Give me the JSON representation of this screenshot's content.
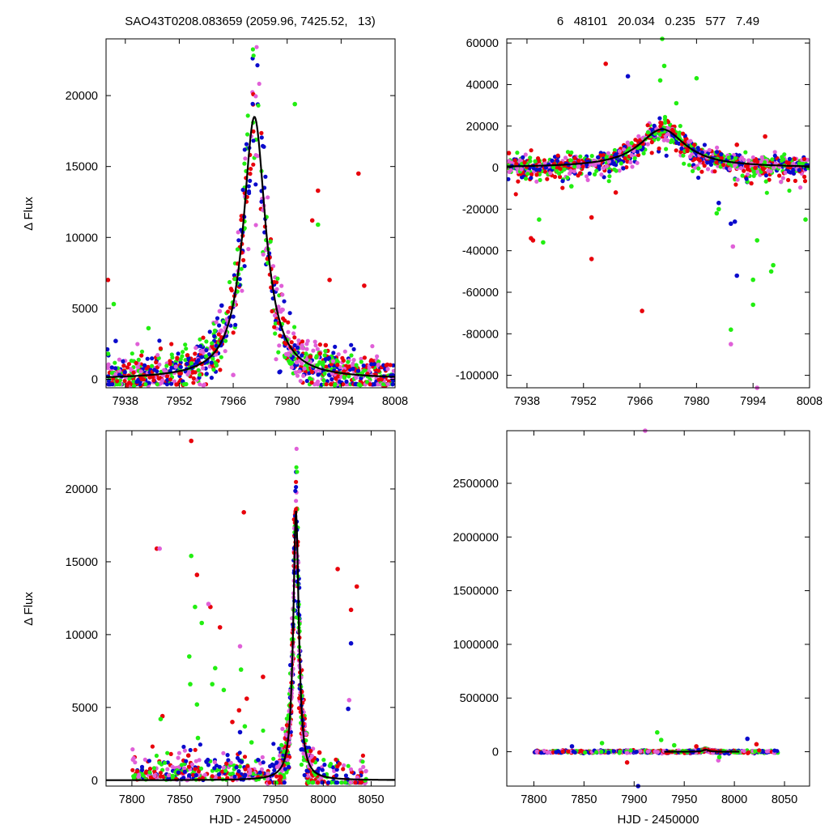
{
  "header": {
    "left_title": "SAO43T0208.083659 (2059.96, 7425.52,   13)",
    "right_title": "6   48101   20.034   0.235   577   7.49"
  },
  "colors": {
    "red": "#e8000b",
    "blue": "#0a0acc",
    "violet": "#e060d8",
    "green": "#22ee11",
    "fit": "#000000"
  },
  "chart_data": [
    {
      "id": "top-left",
      "type": "scatter",
      "title": "",
      "xlabel": "",
      "ylabel": "Δ Flux",
      "xlim": [
        7933,
        8008
      ],
      "ylim": [
        -600,
        24000
      ],
      "xticks": [
        7938,
        7952,
        7966,
        7980,
        7994,
        8008
      ],
      "yticks": [
        0,
        5000,
        10000,
        15000,
        20000
      ],
      "series": [
        {
          "color": "red",
          "outliers": [
            [
              7933.5,
              7000
            ],
            [
              7998.5,
              14500
            ],
            [
              7986.5,
              11200
            ],
            [
              7988,
              13300
            ],
            [
              7991,
              7000
            ],
            [
              8000,
              6600
            ],
            [
              7986,
              1600
            ],
            [
              7990,
              2400
            ]
          ]
        },
        {
          "color": "green",
          "outliers": [
            [
              7935,
              5300
            ],
            [
              7982,
              19400
            ],
            [
              7975,
              8200
            ],
            [
              7988,
              10900
            ],
            [
              7944,
              3600
            ],
            [
              7933.5,
              1800
            ]
          ]
        },
        {
          "color": "violet",
          "outliers": [
            [
              7962.5,
              4800
            ],
            [
              7966,
              300
            ],
            [
              7982.5,
              1200
            ]
          ]
        },
        {
          "color": "blue",
          "outliers": [
            [
              7935.5,
              2700
            ],
            [
              7978,
              500
            ],
            [
              7963,
              5200
            ]
          ]
        }
      ],
      "fit": {
        "peak_x": 7971.5,
        "peak_y": 18500,
        "width": 3.5
      }
    },
    {
      "id": "top-right",
      "type": "scatter",
      "title": "",
      "xlabel": "",
      "ylabel": "",
      "xlim": [
        7933,
        8008
      ],
      "ylim": [
        -106000,
        62000
      ],
      "xticks": [
        7938,
        7952,
        7966,
        7980,
        7994,
        8008
      ],
      "yticks": [
        60000,
        40000,
        20000,
        0,
        -20000,
        -40000,
        -60000,
        -80000,
        -100000
      ],
      "series": [
        {
          "color": "red",
          "outliers": [
            [
              7957.5,
              50000
            ],
            [
              7939,
              -34000
            ],
            [
              7939.5,
              -35000
            ],
            [
              7954,
              -44000
            ],
            [
              7954,
              -24000
            ],
            [
              7960,
              -12000
            ],
            [
              7966.5,
              -69000
            ],
            [
              7977,
              12000
            ],
            [
              7990,
              11000
            ],
            [
              7997,
              15000
            ],
            [
              7933.5,
              7000
            ]
          ]
        },
        {
          "color": "blue",
          "outliers": [
            [
              7963,
              44000
            ],
            [
              7988.5,
              -27000
            ],
            [
              7989.5,
              -26000
            ],
            [
              7990,
              -52000
            ],
            [
              7985.5,
              -17000
            ]
          ]
        },
        {
          "color": "green",
          "outliers": [
            [
              7971.5,
              62000
            ],
            [
              7972,
              49000
            ],
            [
              7971,
              42000
            ],
            [
              7975,
              31000
            ],
            [
              7980,
              43000
            ],
            [
              7985.5,
              -20000
            ],
            [
              7985,
              -22000
            ],
            [
              7988.5,
              -78000
            ],
            [
              7995,
              -35000
            ],
            [
              7994,
              -54000
            ],
            [
              7994,
              -66000
            ],
            [
              7998.5,
              -50000
            ],
            [
              7999,
              -47000
            ],
            [
              8007,
              -25000
            ],
            [
              7942,
              -36000
            ],
            [
              7941,
              -25000
            ],
            [
              7949,
              -9000
            ]
          ]
        },
        {
          "color": "violet",
          "outliers": [
            [
              7988.5,
              -85000
            ],
            [
              7989,
              -38000
            ],
            [
              7995,
              -106000
            ]
          ]
        }
      ],
      "fit": {
        "peak_x": 7971.5,
        "peak_y": 18500,
        "width": 7
      }
    },
    {
      "id": "bottom-left",
      "type": "scatter",
      "title": "",
      "xlabel": "HJD - 2450000",
      "ylabel": "Δ Flux",
      "xlim": [
        7773,
        8075
      ],
      "ylim": [
        -400,
        24000
      ],
      "xticks": [
        7800,
        7850,
        7900,
        7950,
        8000,
        8050
      ],
      "yticks": [
        0,
        5000,
        10000,
        15000,
        20000
      ],
      "series": [
        {
          "color": "red",
          "outliers": [
            [
              7862,
              23300
            ],
            [
              7917,
              18400
            ],
            [
              7826,
              15900
            ],
            [
              7868,
              14100
            ],
            [
              7937,
              7100
            ],
            [
              7882,
              11900
            ],
            [
              7892,
              10500
            ],
            [
              7920,
              5600
            ],
            [
              7912,
              4800
            ],
            [
              7905,
              4000
            ],
            [
              7832,
              4400
            ],
            [
              8015,
              14500
            ],
            [
              8029,
              11700
            ],
            [
              8035,
              13300
            ],
            [
              7859,
              1700
            ],
            [
              7996,
              1900
            ]
          ]
        },
        {
          "color": "green",
          "outliers": [
            [
              7862,
              15400
            ],
            [
              7866,
              11900
            ],
            [
              7873,
              10800
            ],
            [
              7860,
              8500
            ],
            [
              7861,
              6600
            ],
            [
              7868,
              5200
            ],
            [
              7887,
              7700
            ],
            [
              7884,
              6600
            ],
            [
              7896,
              6200
            ],
            [
              7914,
              7600
            ],
            [
              7918,
              3700
            ],
            [
              7830,
              4200
            ],
            [
              7925,
              2600
            ],
            [
              7869,
              2900
            ]
          ]
        },
        {
          "color": "violet",
          "outliers": [
            [
              7880,
              12100
            ],
            [
              7829,
              15900
            ],
            [
              8027,
              5500
            ],
            [
              7913,
              9200
            ]
          ]
        },
        {
          "color": "blue",
          "outliers": [
            [
              8029,
              9400
            ],
            [
              8026,
              4900
            ],
            [
              7913,
              3300
            ]
          ]
        }
      ],
      "fit": {
        "peak_x": 7971.5,
        "peak_y": 18500,
        "width": 3.5
      }
    },
    {
      "id": "bottom-right",
      "type": "scatter",
      "title": "",
      "xlabel": "HJD - 2450000",
      "ylabel": "",
      "xlim": [
        7773,
        8075
      ],
      "ylim": [
        -320000,
        2990000
      ],
      "xticks": [
        7800,
        7850,
        7900,
        7950,
        8000,
        8050
      ],
      "yticks": [
        0,
        500000,
        1000000,
        1500000,
        2000000,
        2500000
      ],
      "series": [
        {
          "color": "violet",
          "outliers": [
            [
              7911,
              2990000
            ],
            [
              7984,
              -80000
            ]
          ]
        },
        {
          "color": "blue",
          "outliers": [
            [
              7904,
              -320000
            ],
            [
              8013,
              120000
            ],
            [
              7838,
              50000
            ]
          ]
        },
        {
          "color": "green",
          "outliers": [
            [
              7923,
              180000
            ],
            [
              7927,
              110000
            ],
            [
              7868,
              80000
            ],
            [
              7985,
              -50000
            ],
            [
              7940,
              60000
            ]
          ]
        },
        {
          "color": "red",
          "outliers": [
            [
              7893,
              -100000
            ],
            [
              7962,
              50000
            ],
            [
              8022,
              70000
            ]
          ]
        }
      ],
      "fit": {
        "peak_x": 7971.5,
        "peak_y": 18500,
        "width": 3.5,
        "x_range": [
          7930,
          8005
        ]
      }
    }
  ]
}
